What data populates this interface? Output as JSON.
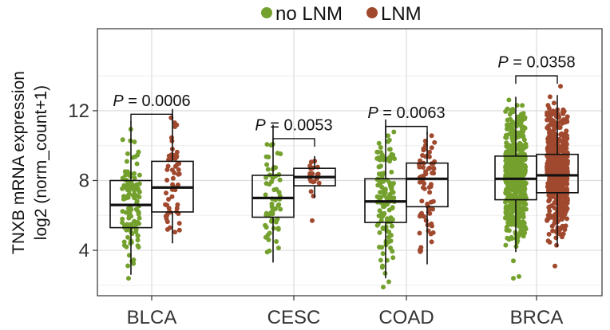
{
  "chart_data": {
    "type": "box",
    "title": "",
    "xlabel": "",
    "ylabel_lines": [
      "TNXB mRNA expression",
      "log2 (norm_count+1)"
    ],
    "ylim": [
      1.4,
      16.7
    ],
    "yticks": [
      4,
      8,
      12
    ],
    "grid": true,
    "legend_position": "top",
    "categories": [
      "BLCA",
      "CESC",
      "COAD",
      "BRCA"
    ],
    "series": [
      {
        "name": "no LNM",
        "color": "#74A12E"
      },
      {
        "name": "LNM",
        "color": "#A0492E"
      }
    ],
    "boxes": [
      {
        "category": "BLCA",
        "series": "no LNM",
        "whisker_low": 2.6,
        "q1": 5.3,
        "median": 6.6,
        "q3": 8.0,
        "whisker_high": 11.4,
        "n": 120,
        "spread": 11
      },
      {
        "category": "BLCA",
        "series": "LNM",
        "whisker_low": 4.4,
        "q1": 6.2,
        "median": 7.6,
        "q3": 9.1,
        "whisker_high": 12.1,
        "n": 55,
        "spread": 9
      },
      {
        "category": "CESC",
        "series": "no LNM",
        "whisker_low": 3.3,
        "q1": 5.9,
        "median": 7.0,
        "q3": 8.3,
        "whisker_high": 11.2,
        "n": 60,
        "spread": 10
      },
      {
        "category": "CESC",
        "series": "LNM",
        "whisker_low": 7.0,
        "q1": 7.7,
        "median": 8.2,
        "q3": 8.7,
        "whisker_high": 9.4,
        "n": 20,
        "spread": 6
      },
      {
        "category": "COAD",
        "series": "no LNM",
        "whisker_low": 2.4,
        "q1": 5.6,
        "median": 6.8,
        "q3": 8.1,
        "whisker_high": 11.5,
        "n": 130,
        "spread": 11
      },
      {
        "category": "COAD",
        "series": "LNM",
        "whisker_low": 3.2,
        "q1": 6.5,
        "median": 8.1,
        "q3": 9.0,
        "whisker_high": 10.8,
        "n": 70,
        "spread": 10
      },
      {
        "category": "BRCA",
        "series": "no LNM",
        "whisker_low": 3.9,
        "q1": 6.9,
        "median": 8.1,
        "q3": 9.4,
        "whisker_high": 12.8,
        "n": 520,
        "spread": 13
      },
      {
        "category": "BRCA",
        "series": "LNM",
        "whisker_low": 4.2,
        "q1": 7.3,
        "median": 8.3,
        "q3": 9.5,
        "whisker_high": 12.9,
        "n": 520,
        "spread": 13
      }
    ],
    "outliers": [
      {
        "category": "BLCA",
        "series": "no LNM",
        "values": [
          2.4
        ]
      },
      {
        "category": "CESC",
        "series": "LNM",
        "values": [
          5.7
        ]
      },
      {
        "category": "COAD",
        "series": "no LNM",
        "values": [
          1.9,
          2.2
        ]
      },
      {
        "category": "BRCA",
        "series": "no LNM",
        "values": [
          2.4,
          2.5,
          3.4
        ]
      },
      {
        "category": "BRCA",
        "series": "LNM",
        "values": [
          3.1,
          13.4
        ]
      }
    ],
    "significance": [
      {
        "category": "BLCA",
        "p_prefix": "P",
        "p_text": " = 0.0006",
        "bracket_y": 11.8,
        "label_y": 12.6
      },
      {
        "category": "CESC",
        "p_prefix": "P",
        "p_text": " = 0.0053",
        "bracket_y": 10.4,
        "label_y": 11.2
      },
      {
        "category": "COAD",
        "p_prefix": "P",
        "p_text": " = 0.0063",
        "bracket_y": 11.1,
        "label_y": 11.9
      },
      {
        "category": "BRCA",
        "p_prefix": "P",
        "p_text": " = 0.0358",
        "bracket_y": 14.0,
        "label_y": 14.8
      }
    ]
  }
}
